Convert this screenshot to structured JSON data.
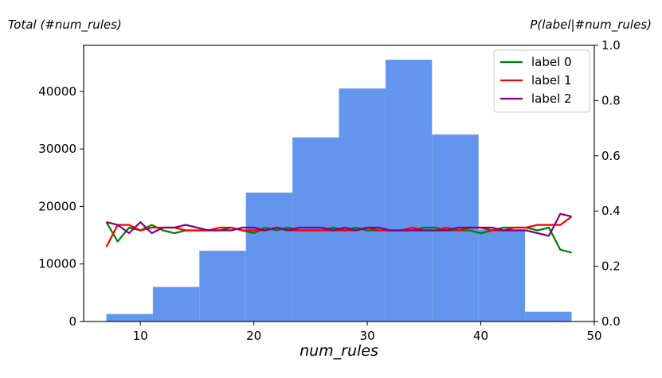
{
  "chart_data": {
    "type": "bar+line",
    "title": "",
    "left_axis_title": "Total (#num_rules)",
    "right_axis_title": "P(label|#num_rules)",
    "xlabel": "num_rules",
    "xlim": [
      5,
      50
    ],
    "xticks": [
      10,
      20,
      30,
      40,
      50
    ],
    "ylim_left": [
      0,
      48000
    ],
    "yticks_left": [
      0,
      10000,
      20000,
      30000,
      40000
    ],
    "ylim_right": [
      0,
      1.0
    ],
    "yticks_right": [
      "0.0",
      "0.2",
      "0.4",
      "0.6",
      "0.8",
      "1.0"
    ],
    "histogram": {
      "color": "#6495ed",
      "bin_edges": [
        7,
        11.1,
        15.2,
        19.3,
        23.4,
        27.5,
        31.6,
        35.7,
        39.8,
        43.9,
        48
      ],
      "counts": [
        1300,
        6000,
        12300,
        22400,
        32000,
        40500,
        45500,
        32500,
        16000,
        1700
      ]
    },
    "grid": false,
    "legend_position": "top-right",
    "series": [
      {
        "name": "label 0",
        "color": "#008000",
        "x": [
          7,
          8,
          9,
          10,
          11,
          12,
          13,
          14,
          15,
          16,
          17,
          18,
          19,
          20,
          21,
          22,
          23,
          24,
          25,
          26,
          27,
          28,
          29,
          30,
          31,
          32,
          33,
          34,
          35,
          36,
          37,
          38,
          39,
          40,
          41,
          42,
          43,
          44,
          45,
          46,
          47,
          48
        ],
        "y": [
          0.36,
          0.29,
          0.34,
          0.33,
          0.35,
          0.33,
          0.32,
          0.33,
          0.33,
          0.33,
          0.33,
          0.34,
          0.33,
          0.32,
          0.34,
          0.33,
          0.34,
          0.33,
          0.33,
          0.33,
          0.34,
          0.33,
          0.34,
          0.33,
          0.33,
          0.33,
          0.33,
          0.33,
          0.34,
          0.34,
          0.33,
          0.33,
          0.33,
          0.32,
          0.33,
          0.34,
          0.34,
          0.34,
          0.33,
          0.34,
          0.26,
          0.25
        ]
      },
      {
        "name": "label 1",
        "color": "#ff0000",
        "x": [
          7,
          8,
          9,
          10,
          11,
          12,
          13,
          14,
          15,
          16,
          17,
          18,
          19,
          20,
          21,
          22,
          23,
          24,
          25,
          26,
          27,
          28,
          29,
          30,
          31,
          32,
          33,
          34,
          35,
          36,
          37,
          38,
          39,
          40,
          41,
          42,
          43,
          44,
          45,
          46,
          47,
          48
        ],
        "y": [
          0.27,
          0.35,
          0.35,
          0.33,
          0.34,
          0.34,
          0.34,
          0.33,
          0.33,
          0.33,
          0.34,
          0.34,
          0.33,
          0.33,
          0.33,
          0.34,
          0.33,
          0.33,
          0.33,
          0.33,
          0.33,
          0.33,
          0.33,
          0.34,
          0.33,
          0.33,
          0.33,
          0.34,
          0.33,
          0.33,
          0.34,
          0.33,
          0.34,
          0.34,
          0.33,
          0.33,
          0.34,
          0.34,
          0.35,
          0.35,
          0.35,
          0.38
        ]
      },
      {
        "name": "label 2",
        "color": "#800080",
        "x": [
          7,
          8,
          9,
          10,
          11,
          12,
          13,
          14,
          15,
          16,
          17,
          18,
          19,
          20,
          21,
          22,
          23,
          24,
          25,
          26,
          27,
          28,
          29,
          30,
          31,
          32,
          33,
          34,
          35,
          36,
          37,
          38,
          39,
          40,
          41,
          42,
          43,
          44,
          45,
          46,
          47,
          48
        ],
        "y": [
          0.36,
          0.35,
          0.32,
          0.36,
          0.32,
          0.34,
          0.34,
          0.35,
          0.34,
          0.33,
          0.33,
          0.33,
          0.34,
          0.34,
          0.33,
          0.34,
          0.33,
          0.34,
          0.34,
          0.34,
          0.33,
          0.34,
          0.33,
          0.34,
          0.34,
          0.33,
          0.33,
          0.33,
          0.33,
          0.33,
          0.33,
          0.34,
          0.34,
          0.34,
          0.34,
          0.33,
          0.33,
          0.33,
          0.32,
          0.31,
          0.39,
          0.38
        ]
      }
    ]
  }
}
